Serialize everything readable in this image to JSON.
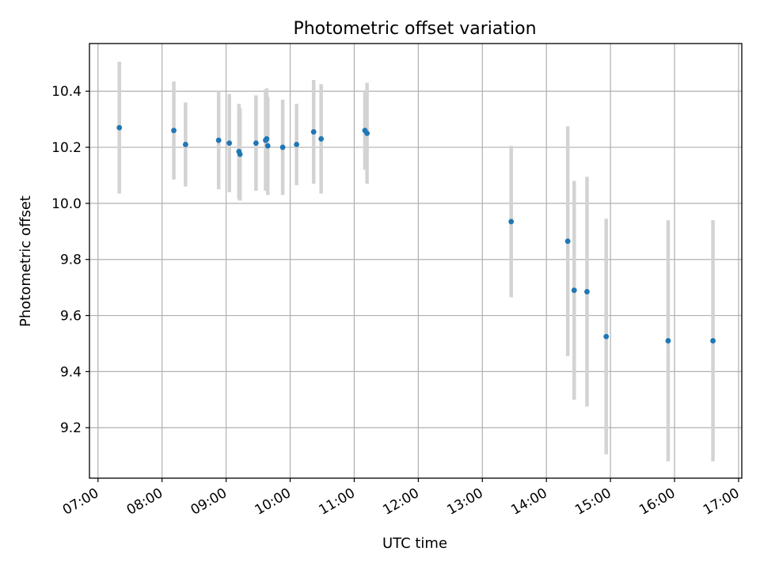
{
  "chart_data": {
    "type": "scatter",
    "title": "Photometric offset variation",
    "xlabel": "UTC time",
    "ylabel": "Photometric offset",
    "x_ticks": [
      "07:00",
      "08:00",
      "09:00",
      "10:00",
      "11:00",
      "12:00",
      "13:00",
      "14:00",
      "15:00",
      "16:00",
      "17:00"
    ],
    "y_ticks": [
      "9.2",
      "9.4",
      "9.6",
      "9.8",
      "10.0",
      "10.2",
      "10.4"
    ],
    "xlim": [
      "06:52",
      "17:03"
    ],
    "ylim": [
      9.02,
      10.57
    ],
    "grid": true,
    "colors": {
      "points": "#1f77b4",
      "error_bars": "#d3d3d3",
      "grid": "#b0b0b0"
    },
    "points": [
      {
        "x": "07:20",
        "y": 10.27,
        "err": 0.235
      },
      {
        "x": "08:11",
        "y": 10.26,
        "err": 0.175
      },
      {
        "x": "08:22",
        "y": 10.21,
        "err": 0.15
      },
      {
        "x": "08:53",
        "y": 10.225,
        "err": 0.175
      },
      {
        "x": "09:03",
        "y": 10.215,
        "err": 0.175
      },
      {
        "x": "09:12",
        "y": 10.185,
        "err": 0.17
      },
      {
        "x": "09:13",
        "y": 10.175,
        "err": 0.165
      },
      {
        "x": "09:28",
        "y": 10.215,
        "err": 0.17
      },
      {
        "x": "09:37",
        "y": 10.225,
        "err": 0.18
      },
      {
        "x": "09:38",
        "y": 10.23,
        "err": 0.18
      },
      {
        "x": "09:39",
        "y": 10.205,
        "err": 0.175
      },
      {
        "x": "09:53",
        "y": 10.2,
        "err": 0.17
      },
      {
        "x": "10:06",
        "y": 10.21,
        "err": 0.145
      },
      {
        "x": "10:22",
        "y": 10.255,
        "err": 0.185
      },
      {
        "x": "10:29",
        "y": 10.23,
        "err": 0.195
      },
      {
        "x": "11:10",
        "y": 10.26,
        "err": 0.14
      },
      {
        "x": "11:12",
        "y": 10.25,
        "err": 0.18
      },
      {
        "x": "13:27",
        "y": 9.935,
        "err": 0.27
      },
      {
        "x": "14:20",
        "y": 9.865,
        "err": 0.41
      },
      {
        "x": "14:26",
        "y": 9.69,
        "err": 0.39
      },
      {
        "x": "14:38",
        "y": 9.685,
        "err": 0.41
      },
      {
        "x": "14:56",
        "y": 9.525,
        "err": 0.42
      },
      {
        "x": "15:54",
        "y": 9.51,
        "err": 0.43
      },
      {
        "x": "16:36",
        "y": 9.51,
        "err": 0.43
      }
    ]
  }
}
